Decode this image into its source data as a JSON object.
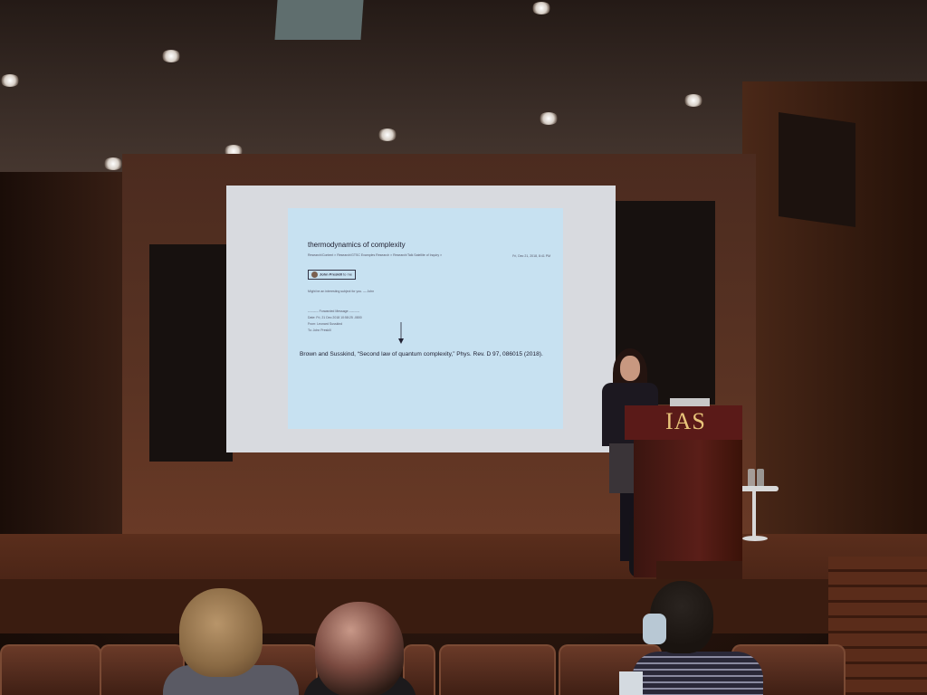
{
  "podium": {
    "logo_text": "IAS",
    "logo_color": "#e8c47a"
  },
  "slide": {
    "title": "thermodynamics of complexity",
    "tags": "Research/Content × Research/GTSC Examples Research × Research/Talk Satellite of Inquiry ×",
    "date": "Fri, Dec 21, 2018, 8:41 PM",
    "sender_name": "John Preskill",
    "sender_note": "to me",
    "body": "Might be an interesting subject for you. — John",
    "forwarded_header": "---------- Forwarded Message ----------",
    "forwarded_date": "Date: Fri, 21 Dec 2018 10:58:25 -0800",
    "forwarded_from": "From: Leonard Susskind",
    "forwarded_to": "To: John Preskill",
    "citation": "Brown and Susskind, “Second law of quantum complexity,” Phys. Rev. D 97, 086015 (2018)."
  },
  "colors": {
    "wood": "#5a3323",
    "screen": "#c7e1f1",
    "podium": "#5a1a18"
  }
}
